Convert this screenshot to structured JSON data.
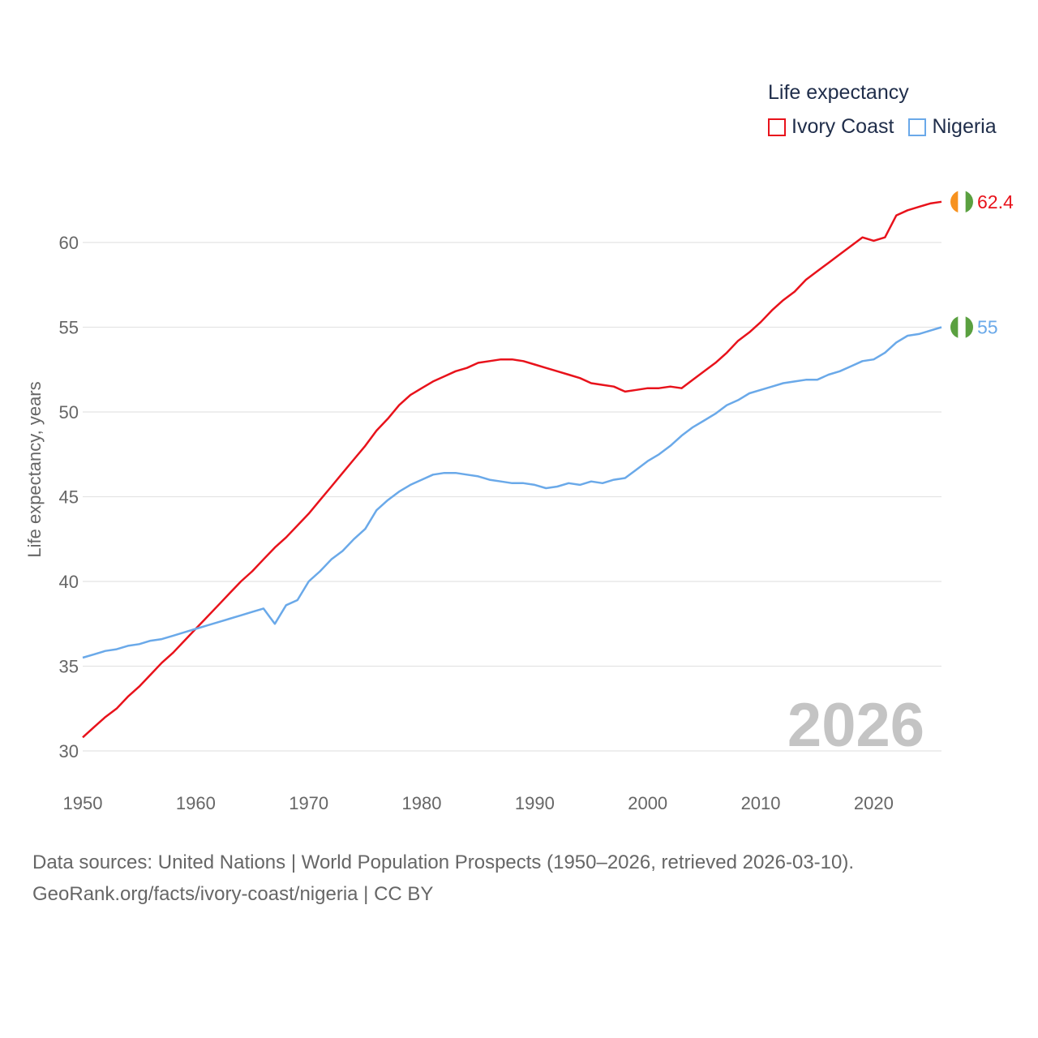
{
  "legend": {
    "title": "Life expectancy",
    "items": [
      {
        "name": "Ivory Coast",
        "color": "#e8121b"
      },
      {
        "name": "Nigeria",
        "color": "#6aa9e9"
      }
    ]
  },
  "chart_data": {
    "type": "line",
    "title": "Life expectancy",
    "xlabel": "",
    "ylabel": "Life expectancy, years",
    "xlim": [
      1950,
      2026
    ],
    "ylim": [
      30,
      62.5
    ],
    "xticks": [
      1950,
      1960,
      1970,
      1980,
      1990,
      2000,
      2010,
      2020
    ],
    "yticks": [
      30,
      35,
      40,
      45,
      50,
      55,
      60
    ],
    "year_label": "2026",
    "x": [
      1950,
      1951,
      1952,
      1953,
      1954,
      1955,
      1956,
      1957,
      1958,
      1959,
      1960,
      1961,
      1962,
      1963,
      1964,
      1965,
      1966,
      1967,
      1968,
      1969,
      1970,
      1971,
      1972,
      1973,
      1974,
      1975,
      1976,
      1977,
      1978,
      1979,
      1980,
      1981,
      1982,
      1983,
      1984,
      1985,
      1986,
      1987,
      1988,
      1989,
      1990,
      1991,
      1992,
      1993,
      1994,
      1995,
      1996,
      1997,
      1998,
      1999,
      2000,
      2001,
      2002,
      2003,
      2004,
      2005,
      2006,
      2007,
      2008,
      2009,
      2010,
      2011,
      2012,
      2013,
      2014,
      2015,
      2016,
      2017,
      2018,
      2019,
      2020,
      2021,
      2022,
      2023,
      2024,
      2025,
      2026
    ],
    "series": [
      {
        "name": "Ivory Coast",
        "color": "#e8121b",
        "end_label": "62.4",
        "values": [
          30.8,
          31.4,
          32.0,
          32.5,
          33.2,
          33.8,
          34.5,
          35.2,
          35.8,
          36.5,
          37.2,
          37.9,
          38.6,
          39.3,
          40.0,
          40.6,
          41.3,
          42.0,
          42.6,
          43.3,
          44.0,
          44.8,
          45.6,
          46.4,
          47.2,
          48.0,
          48.9,
          49.6,
          50.4,
          51.0,
          51.4,
          51.8,
          52.1,
          52.4,
          52.6,
          52.9,
          53.0,
          53.1,
          53.1,
          53.0,
          52.8,
          52.6,
          52.4,
          52.2,
          52.0,
          51.7,
          51.6,
          51.5,
          51.2,
          51.3,
          51.4,
          51.4,
          51.5,
          51.4,
          51.9,
          52.4,
          52.9,
          53.5,
          54.2,
          54.7,
          55.3,
          56.0,
          56.6,
          57.1,
          57.8,
          58.3,
          58.8,
          59.3,
          59.8,
          60.3,
          60.1,
          60.3,
          61.6,
          61.9,
          62.1,
          62.3,
          62.4
        ]
      },
      {
        "name": "Nigeria",
        "color": "#6aa9e9",
        "end_label": "55",
        "values": [
          35.5,
          35.7,
          35.9,
          36.0,
          36.2,
          36.3,
          36.5,
          36.6,
          36.8,
          37.0,
          37.2,
          37.4,
          37.6,
          37.8,
          38.0,
          38.2,
          38.4,
          37.5,
          38.6,
          38.9,
          40.0,
          40.6,
          41.3,
          41.8,
          42.5,
          43.1,
          44.2,
          44.8,
          45.3,
          45.7,
          46.0,
          46.3,
          46.4,
          46.4,
          46.3,
          46.2,
          46.0,
          45.9,
          45.8,
          45.8,
          45.7,
          45.5,
          45.6,
          45.8,
          45.7,
          45.9,
          45.8,
          46.0,
          46.1,
          46.6,
          47.1,
          47.5,
          48.0,
          48.6,
          49.1,
          49.5,
          49.9,
          50.4,
          50.7,
          51.1,
          51.3,
          51.5,
          51.7,
          51.8,
          51.9,
          51.9,
          52.2,
          52.4,
          52.7,
          53.0,
          53.1,
          53.5,
          54.1,
          54.5,
          54.6,
          54.8,
          55.0
        ]
      }
    ]
  },
  "footer": {
    "line1": "Data sources: United Nations | World Population Prospects (1950–2026, retrieved 2026-03-10).",
    "line2": "GeoRank.org/facts/ivory-coast/nigeria | CC BY"
  },
  "flags": [
    {
      "country": "Ivory Coast",
      "colors": [
        "#f7921e",
        "#ffffff",
        "#5aa040"
      ]
    },
    {
      "country": "Nigeria",
      "colors": [
        "#5aa040",
        "#ffffff",
        "#5aa040"
      ]
    }
  ]
}
